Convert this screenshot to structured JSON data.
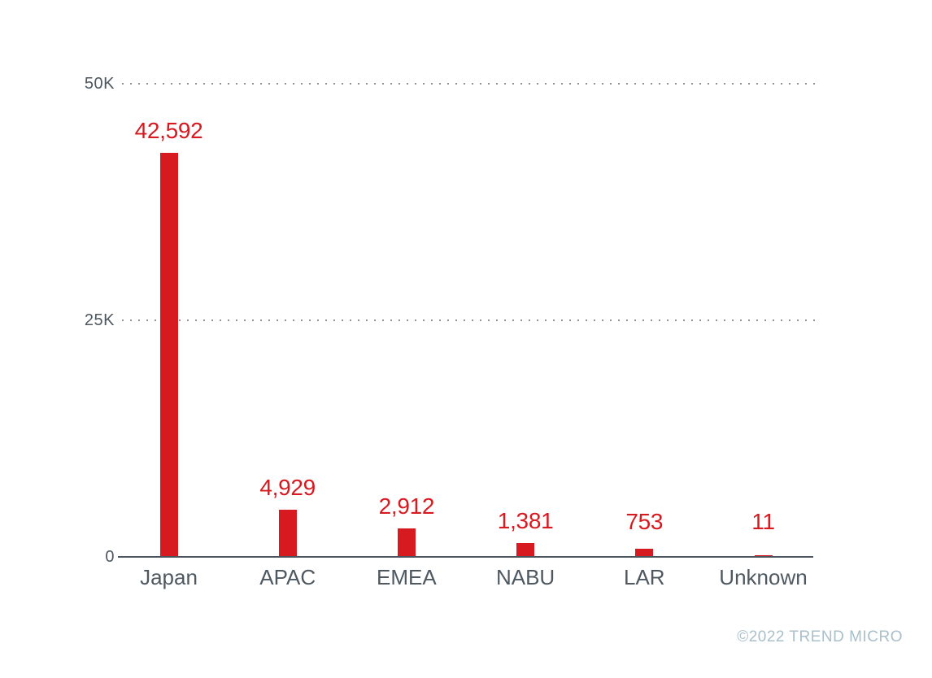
{
  "chart_data": {
    "type": "bar",
    "categories": [
      "Japan",
      "APAC",
      "EMEA",
      "NABU",
      "LAR",
      "Unknown"
    ],
    "values": [
      42592,
      4929,
      2912,
      1381,
      753,
      11
    ],
    "value_labels": [
      "42,592",
      "4,929",
      "2,912",
      "1,381",
      "753",
      "11"
    ],
    "title": "",
    "xlabel": "",
    "ylabel": "",
    "ylim": [
      0,
      50000
    ],
    "yticks": [
      {
        "value": 0,
        "label": "0"
      },
      {
        "value": 25000,
        "label": "25K"
      },
      {
        "value": 50000,
        "label": "50K"
      }
    ],
    "grid": "horizontal dotted lines at 25K and 50K",
    "legend": "none",
    "colors": {
      "bar": "#d71920",
      "value_label": "#d71920",
      "axis_text": "#4e5860",
      "axis_line": "#4b545c",
      "gridline_dots": "#8e969c"
    }
  },
  "footer": {
    "copyright": "©2022 TREND MICRO",
    "color": "#a9bfca"
  }
}
